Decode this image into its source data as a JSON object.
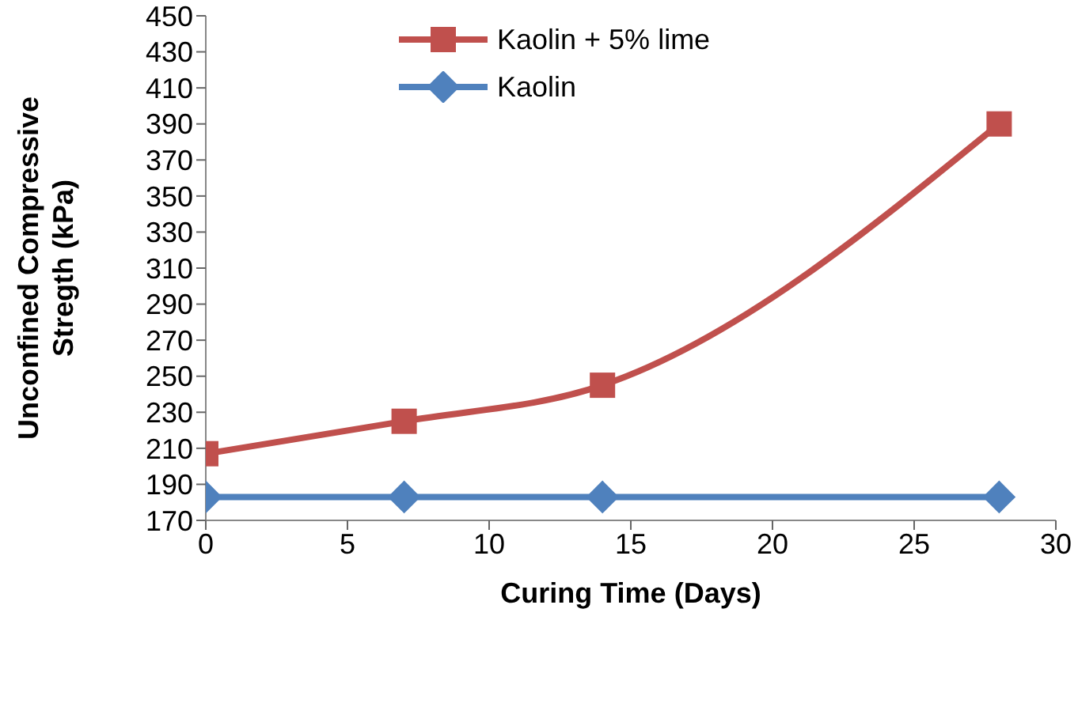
{
  "chart_data": {
    "type": "line",
    "xlabel": "Curing  Time (Days)",
    "ylabel": "Unconfined Compressive Stregth (kPa)",
    "x": [
      0,
      7,
      14,
      28
    ],
    "series": [
      {
        "name": "Kaolin + 5% lime",
        "color": "#c0504d",
        "values": [
          207,
          225,
          245,
          390
        ],
        "marker": "square"
      },
      {
        "name": "Kaolin",
        "color": "#4f81bd",
        "values": [
          183,
          183,
          183,
          183
        ],
        "marker": "diamond"
      }
    ],
    "xlim": [
      0,
      30
    ],
    "xticks": [
      0,
      5,
      10,
      15,
      20,
      25,
      30
    ],
    "ylim": [
      170,
      450
    ],
    "yticks": [
      170,
      190,
      210,
      230,
      250,
      270,
      290,
      310,
      330,
      350,
      370,
      390,
      410,
      430,
      450
    ],
    "legend": "top",
    "line_style": "solid"
  }
}
